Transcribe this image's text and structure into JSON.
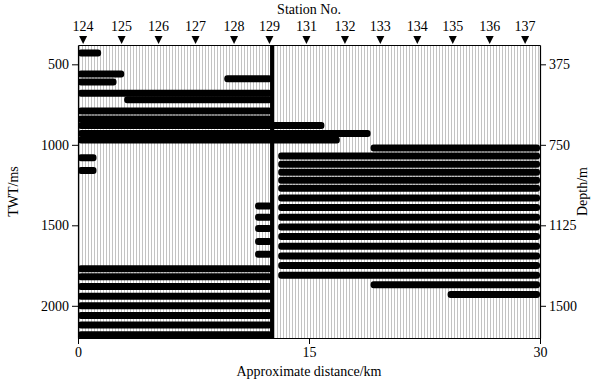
{
  "chart_data": {
    "type": "seismic_section",
    "top_label": "Station No.",
    "x_label": "Approximate distance/km",
    "y_label": "TWT/ms",
    "y2_label": "Depth/m",
    "xlim": [
      0,
      30
    ],
    "xticks": [
      0,
      15,
      30
    ],
    "ylim": [
      380,
      2200
    ],
    "yticks": [
      500,
      1000,
      1500,
      2000
    ],
    "y2lim": [
      285,
      1650
    ],
    "y2ticks": [
      375,
      750,
      1125,
      1500
    ],
    "color": "#000000",
    "stations": {
      "values": [
        124,
        125,
        126,
        127,
        128,
        129,
        131,
        132,
        133,
        134,
        135,
        136,
        137
      ],
      "x": [
        0.3,
        2.8,
        5.2,
        7.6,
        10.1,
        12.4,
        14.8,
        17.3,
        19.6,
        22.0,
        24.3,
        26.7,
        29.0
      ]
    },
    "line_x": 12.6,
    "reflectors": [
      {
        "x": [
          0,
          1.5
        ],
        "twt": 430
      },
      {
        "x": [
          0,
          3
        ],
        "twt": 560
      },
      {
        "x": [
          0,
          2.5
        ],
        "twt": 610
      },
      {
        "x": [
          9.5,
          12.6
        ],
        "twt": 590
      },
      {
        "x": [
          0,
          12.6
        ],
        "twt": 680
      },
      {
        "x": [
          3,
          12.6
        ],
        "twt": 720
      },
      {
        "x": [
          0,
          12.6
        ],
        "twt": 790
      },
      {
        "x": [
          0,
          12.6
        ],
        "twt": 840
      },
      {
        "x": [
          0,
          16
        ],
        "twt": 880
      },
      {
        "x": [
          0,
          19
        ],
        "twt": 930
      },
      {
        "x": [
          0,
          17
        ],
        "twt": 970
      },
      {
        "x": [
          0,
          1.2
        ],
        "twt": 1080
      },
      {
        "x": [
          0,
          1.2
        ],
        "twt": 1160
      },
      {
        "x": [
          11.5,
          12.6
        ],
        "twt": 1380
      },
      {
        "x": [
          11.5,
          12.6
        ],
        "twt": 1450
      },
      {
        "x": [
          11.5,
          12.6
        ],
        "twt": 1520
      },
      {
        "x": [
          11.5,
          12.6
        ],
        "twt": 1600
      },
      {
        "x": [
          11.5,
          12.6
        ],
        "twt": 1680
      },
      {
        "x": [
          0,
          12.6
        ],
        "twt": 1770
      },
      {
        "x": [
          0,
          12.6
        ],
        "twt": 1820
      },
      {
        "x": [
          0,
          12.6
        ],
        "twt": 1880
      },
      {
        "x": [
          0,
          12.6
        ],
        "twt": 1940
      },
      {
        "x": [
          0,
          12.6
        ],
        "twt": 2000
      },
      {
        "x": [
          0,
          12.6
        ],
        "twt": 2060
      },
      {
        "x": [
          0,
          12.6
        ],
        "twt": 2120
      },
      {
        "x": [
          0,
          12.6
        ],
        "twt": 2180
      },
      {
        "x": [
          19,
          30
        ],
        "twt": 1020
      },
      {
        "x": [
          13,
          30
        ],
        "twt": 1070
      },
      {
        "x": [
          13,
          30
        ],
        "twt": 1120
      },
      {
        "x": [
          13,
          30
        ],
        "twt": 1170
      },
      {
        "x": [
          13,
          30
        ],
        "twt": 1220
      },
      {
        "x": [
          13,
          30
        ],
        "twt": 1270
      },
      {
        "x": [
          13,
          30
        ],
        "twt": 1330
      },
      {
        "x": [
          13,
          30
        ],
        "twt": 1390
      },
      {
        "x": [
          13,
          30
        ],
        "twt": 1450
      },
      {
        "x": [
          13,
          30
        ],
        "twt": 1510
      },
      {
        "x": [
          13,
          30
        ],
        "twt": 1570
      },
      {
        "x": [
          13,
          30
        ],
        "twt": 1630
      },
      {
        "x": [
          13,
          30
        ],
        "twt": 1690
      },
      {
        "x": [
          13,
          30
        ],
        "twt": 1750
      },
      {
        "x": [
          13,
          30
        ],
        "twt": 1810
      },
      {
        "x": [
          19,
          30
        ],
        "twt": 1870
      },
      {
        "x": [
          24,
          30
        ],
        "twt": 1930
      }
    ]
  }
}
